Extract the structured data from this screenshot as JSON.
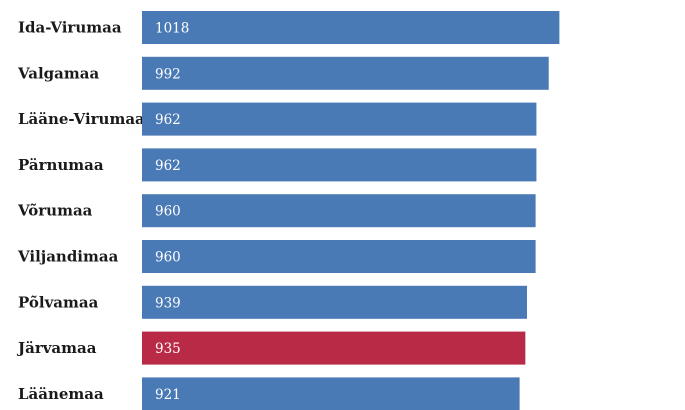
{
  "chart_data": {
    "type": "bar",
    "orientation": "horizontal",
    "categories": [
      "Ida-Virumaa",
      "Valgamaa",
      "Lääne-Virumaa",
      "Pärnumaa",
      "Võrumaa",
      "Viljandimaa",
      "Põlvamaa",
      "Järvamaa",
      "Läänemaa"
    ],
    "values": [
      1018,
      992,
      962,
      962,
      960,
      960,
      939,
      935,
      921
    ],
    "value_labels": [
      "1018",
      "992",
      "962",
      "962",
      "960",
      "960",
      "939",
      "935",
      "921"
    ],
    "highlight_index": 7,
    "colors": {
      "bar": "#4a7ab5",
      "highlight": "#b82a45",
      "label_text": "#1a1a1a",
      "value_text": "#ffffff"
    },
    "grid": false,
    "legend": "none"
  }
}
